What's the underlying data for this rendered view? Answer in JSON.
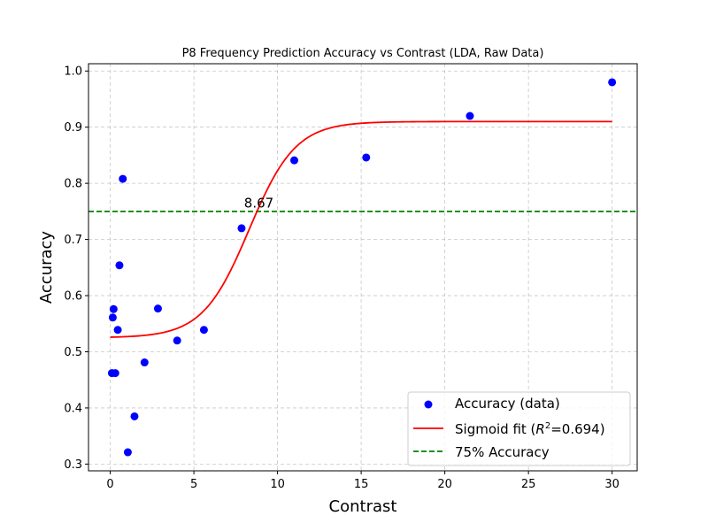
{
  "chart_data": {
    "type": "scatter",
    "title": "P8 Frequency Prediction Accuracy vs Contrast (LDA, Raw Data)",
    "xlabel": "Contrast",
    "ylabel": "Accuracy",
    "xlim": [
      -1.3,
      31.5
    ],
    "ylim": [
      0.288,
      1.013
    ],
    "xticks": [
      0,
      5,
      10,
      15,
      20,
      25,
      30
    ],
    "yticks": [
      0.3,
      0.4,
      0.5,
      0.6,
      0.7,
      0.8,
      0.9,
      1.0
    ],
    "xtick_labels": [
      "0",
      "5",
      "10",
      "15",
      "20",
      "25",
      "30"
    ],
    "ytick_labels": [
      "0.3",
      "0.4",
      "0.5",
      "0.6",
      "0.7",
      "0.8",
      "0.9",
      "1.0"
    ],
    "grid": true,
    "legend_position": "lower-right",
    "series": [
      {
        "name": "Accuracy (data)",
        "kind": "scatter",
        "color": "#0000ff",
        "x": [
          0.1,
          0.15,
          0.2,
          0.3,
          0.45,
          0.55,
          0.75,
          1.05,
          1.45,
          2.05,
          2.85,
          4.0,
          5.6,
          7.85,
          11.0,
          15.3,
          21.5,
          30.0
        ],
        "y": [
          0.462,
          0.561,
          0.576,
          0.462,
          0.539,
          0.654,
          0.808,
          0.321,
          0.385,
          0.481,
          0.577,
          0.52,
          0.539,
          0.72,
          0.841,
          0.846,
          0.92,
          0.98
        ]
      },
      {
        "name": "Sigmoid fit (R²=0.694)",
        "name_parts": [
          "Sigmoid fit (",
          "R",
          "2",
          "=0.694)"
        ],
        "kind": "line",
        "color": "#ff0000",
        "model": "sigmoid",
        "params": {
          "lower": 0.525,
          "upper": 0.91,
          "midpoint": 8.3,
          "slope": 0.72
        },
        "x_range": [
          0,
          30
        ]
      },
      {
        "name": "75% Accuracy",
        "kind": "hline",
        "color": "#008000",
        "y": 0.75
      }
    ],
    "annotations": [
      {
        "text": "8.67",
        "x": 8.0,
        "y": 0.757
      }
    ]
  }
}
